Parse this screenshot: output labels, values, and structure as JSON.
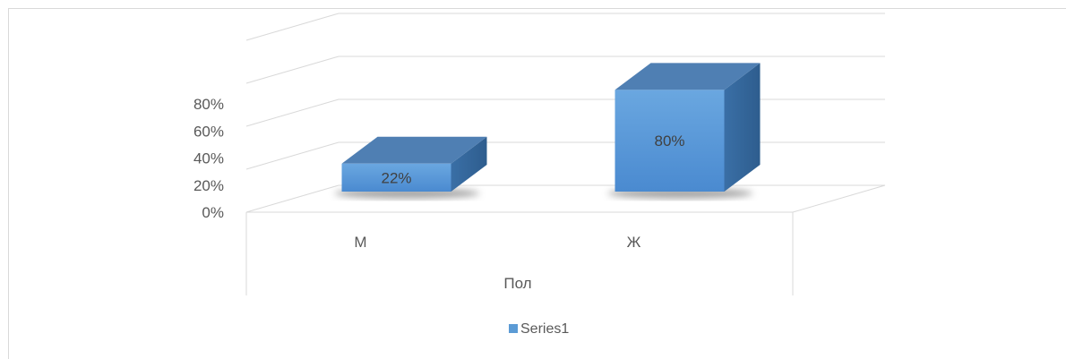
{
  "chart_data": {
    "type": "bar",
    "categories": [
      "М",
      "Ж"
    ],
    "series": [
      {
        "name": "Series1",
        "values": [
          0.22,
          0.8
        ],
        "color": "#5b9bd5"
      }
    ],
    "data_labels": [
      "22%",
      "80%"
    ],
    "ylim": [
      0,
      0.8
    ],
    "yticks": [
      "0%",
      "20%",
      "40%",
      "60%",
      "80%"
    ],
    "xlabel": "Пол",
    "legend_position": "bottom",
    "grid": true,
    "three_d": true
  }
}
